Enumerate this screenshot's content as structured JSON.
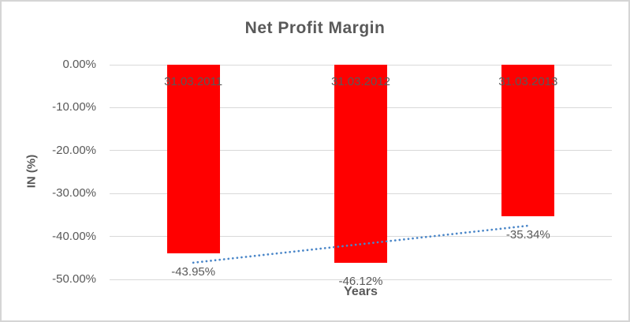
{
  "frame": {
    "background": "#ffffff",
    "border_color": "#d5d5d5"
  },
  "chart_data": {
    "type": "bar",
    "title": "Net Profit Margin",
    "xlabel": "Years",
    "ylabel": "IN (%)",
    "categories": [
      "31.03.2011",
      "31.03.2012",
      "31.03.2013"
    ],
    "values": [
      -43.95,
      -46.12,
      -35.34
    ],
    "data_labels": [
      "-43.95%",
      "-46.12%",
      "-35.34%"
    ],
    "bar_color": "#ff0000",
    "ylim": [
      -50,
      0
    ],
    "y_ticks": [
      0,
      -10,
      -20,
      -30,
      -40,
      -50
    ],
    "y_tick_labels": [
      "0.00%",
      "-10.00%",
      "-20.00%",
      "-30.00%",
      "-40.00%",
      "-50.00%"
    ],
    "grid": true,
    "gridline_color": "#d9d9d9",
    "text_color": "#595959",
    "legend": "none",
    "trendline": {
      "type": "linear",
      "style": "dotted",
      "color": "#4a86c8",
      "start_value": -46.11,
      "end_value": -37.5
    }
  }
}
